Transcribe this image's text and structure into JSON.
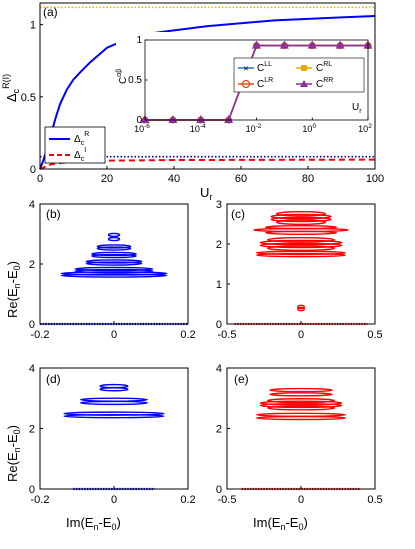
{
  "chart_data": [
    {
      "panel_label": "(a)",
      "type": "line",
      "ylabel": "Δc^R(I)",
      "xlabel": "Ur",
      "xlim": [
        0,
        100
      ],
      "ylim": [
        0,
        1.15
      ],
      "xticks": [
        0,
        20,
        40,
        60,
        80,
        100
      ],
      "yticks": [
        0,
        0.5,
        1
      ],
      "series": [
        {
          "name": "Δc^R",
          "color": "#0000ff",
          "style": "solid",
          "x": [
            0,
            1,
            2,
            3,
            4,
            5,
            6,
            8,
            10,
            12,
            15,
            20,
            25,
            30,
            40,
            50,
            60,
            70,
            80,
            90,
            100
          ],
          "y": [
            0.0,
            0.06,
            0.13,
            0.21,
            0.3,
            0.38,
            0.45,
            0.55,
            0.62,
            0.67,
            0.74,
            0.84,
            0.89,
            0.93,
            0.96,
            0.99,
            1.01,
            1.03,
            1.04,
            1.05,
            1.06
          ]
        },
        {
          "name": "Δc^I",
          "color": "#ff0000",
          "style": "dashed",
          "x": [
            0,
            1,
            2,
            3,
            5,
            8,
            10,
            15,
            20,
            30,
            40,
            60,
            80,
            100
          ],
          "y": [
            0.0,
            0.01,
            0.02,
            0.03,
            0.04,
            0.045,
            0.05,
            0.055,
            0.058,
            0.06,
            0.062,
            0.063,
            0.064,
            0.065
          ]
        },
        {
          "color": "#f5b800",
          "style": "dotted",
          "x": [
            0,
            100
          ],
          "y": [
            1.12,
            1.12
          ]
        },
        {
          "color": "#0000aa",
          "style": "dotted",
          "x": [
            0,
            100
          ],
          "y": [
            0.085,
            0.085
          ]
        }
      ],
      "inset": {
        "type": "line",
        "ylabel": "C^αβ",
        "xlabel": "Ur",
        "xscale": "log",
        "xlim": [
          1e-06,
          100
        ],
        "ylim": [
          0,
          1
        ],
        "xtick_labels": [
          "10-6",
          "10-4",
          "10-2",
          "100",
          "102"
        ],
        "xtick_values": [
          1e-06,
          0.0001,
          0.01,
          1,
          100
        ],
        "yticks": [
          0,
          0.5,
          1
        ],
        "x": [
          1e-06,
          1e-05,
          0.0001,
          0.001,
          0.01,
          0.1,
          1,
          10,
          100
        ],
        "series": [
          {
            "name": "C^LL",
            "color": "#1f77c8",
            "marker": "x",
            "y": [
              0,
              0,
              0,
              0,
              0.93,
              0.93,
              0.93,
              0.93,
              0.93
            ]
          },
          {
            "name": "C^RL",
            "color": "#e8a800",
            "marker": "square",
            "y": [
              0,
              0,
              0,
              0,
              0.93,
              0.93,
              0.93,
              0.93,
              0.93
            ]
          },
          {
            "name": "C^LR",
            "color": "#e05010",
            "marker": "circle",
            "y": [
              0,
              0,
              0,
              0,
              0.93,
              0.93,
              0.93,
              0.93,
              0.93
            ]
          },
          {
            "name": "C^RR",
            "color": "#8b2f9b",
            "marker": "triangle",
            "y": [
              0,
              0,
              0,
              0,
              0.93,
              0.93,
              0.93,
              0.93,
              0.93
            ]
          }
        ]
      }
    },
    {
      "panel_label": "(b)",
      "type": "scatter",
      "color": "#0000ff",
      "ylabel": "Re(En - E0)",
      "xlim": [
        -0.2,
        0.2
      ],
      "ylim": [
        0,
        4
      ],
      "xtick_labels": [
        "-0.2",
        "0",
        "0.2"
      ],
      "xtick_values": [
        -0.2,
        0,
        0.2
      ],
      "yticks": [
        0,
        2,
        4
      ],
      "baseline": {
        "y": 0,
        "xmin": -0.2,
        "xmax": 0.2
      },
      "bands": [
        {
          "y": 1.65,
          "half_width": 0.19,
          "thickness": 0.05
        },
        {
          "y": 1.8,
          "half_width": 0.14,
          "thickness": 0.04
        },
        {
          "y": 2.05,
          "half_width": 0.1,
          "thickness": 0.08
        },
        {
          "y": 2.3,
          "half_width": 0.08,
          "thickness": 0.1
        },
        {
          "y": 2.55,
          "half_width": 0.06,
          "thickness": 0.08
        },
        {
          "y": 2.9,
          "half_width": 0.02,
          "thickness": 0.2
        }
      ]
    },
    {
      "panel_label": "(c)",
      "type": "scatter",
      "color": "#ff0000",
      "xlim": [
        -0.5,
        0.5
      ],
      "ylim": [
        0,
        3
      ],
      "xtick_labels": [
        "-0.5",
        "0",
        "0.5"
      ],
      "xtick_values": [
        -0.5,
        0,
        0.5
      ],
      "yticks": [
        0,
        1,
        2,
        3
      ],
      "baseline": {
        "y": 0,
        "xmin": -0.45,
        "xmax": 0.45
      },
      "bands": [
        {
          "y": 0.4,
          "half_width": 0.03,
          "thickness": 0.08
        },
        {
          "y": 1.75,
          "half_width": 0.4,
          "thickness": 0.08
        },
        {
          "y": 2.0,
          "half_width": 0.3,
          "thickness": 0.3
        },
        {
          "y": 2.35,
          "half_width": 0.32,
          "thickness": 0.2
        },
        {
          "y": 2.65,
          "half_width": 0.22,
          "thickness": 0.3
        }
      ]
    },
    {
      "panel_label": "(d)",
      "type": "scatter",
      "color": "#0000ff",
      "ylabel": "Re(En - E0)",
      "xlabel": "Im(En - E0)",
      "xlim": [
        -0.2,
        0.2
      ],
      "ylim": [
        0,
        4
      ],
      "xtick_labels": [
        "-0.2",
        "0",
        "0.2"
      ],
      "xtick_values": [
        -0.2,
        0,
        0.2
      ],
      "yticks": [
        0,
        2,
        4
      ],
      "baseline": {
        "y": 0,
        "xmin": -0.11,
        "xmax": 0.11
      },
      "bands": [
        {
          "y": 2.45,
          "half_width": 0.18,
          "thickness": 0.12
        },
        {
          "y": 2.9,
          "half_width": 0.12,
          "thickness": 0.15
        },
        {
          "y": 3.35,
          "half_width": 0.05,
          "thickness": 0.15
        }
      ]
    },
    {
      "panel_label": "(e)",
      "type": "scatter",
      "color": "#ff0000",
      "xlabel": "Im(En - E0)",
      "xlim": [
        -0.5,
        0.5
      ],
      "ylim": [
        0,
        4
      ],
      "xtick_labels": [
        "-0.5",
        "0",
        "0.5"
      ],
      "xtick_values": [
        -0.5,
        0,
        0.5
      ],
      "yticks": [
        0,
        2,
        4
      ],
      "baseline": {
        "y": 0,
        "xmin": -0.4,
        "xmax": 0.4
      },
      "bands": [
        {
          "y": 2.4,
          "half_width": 0.4,
          "thickness": 0.15
        },
        {
          "y": 2.8,
          "half_width": 0.3,
          "thickness": 0.35
        },
        {
          "y": 3.2,
          "half_width": 0.28,
          "thickness": 0.2
        }
      ]
    }
  ]
}
